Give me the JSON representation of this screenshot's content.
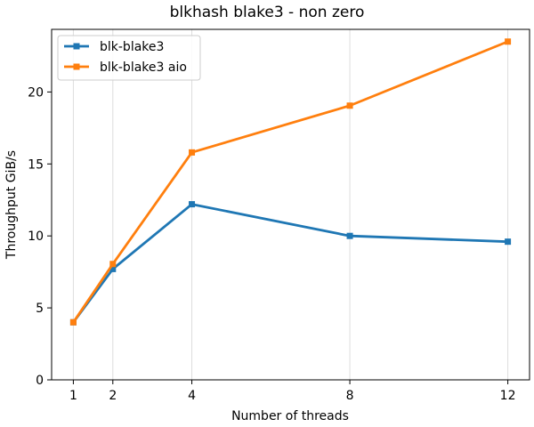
{
  "chart_data": {
    "type": "line",
    "title": "blkhash blake3 - non zero",
    "xlabel": "Number of threads",
    "ylabel": "Throughput GiB/s",
    "x": [
      1,
      2,
      4,
      8,
      12
    ],
    "x_ticks": [
      1,
      2,
      4,
      8,
      12
    ],
    "xlim": [
      0.45,
      12.55
    ],
    "y_ticks": [
      0,
      5,
      10,
      15,
      20
    ],
    "ylim": [
      0,
      24.35
    ],
    "grid": "vertical",
    "legend_position": "top-left",
    "series": [
      {
        "name": "blk-blake3",
        "color": "#1f77b4",
        "marker": "square",
        "values": [
          4.0,
          7.7,
          12.2,
          10.0,
          9.6
        ]
      },
      {
        "name": "blk-blake3 aio",
        "color": "#ff7f0e",
        "marker": "square",
        "values": [
          4.0,
          8.05,
          15.8,
          19.05,
          23.5
        ]
      }
    ]
  }
}
